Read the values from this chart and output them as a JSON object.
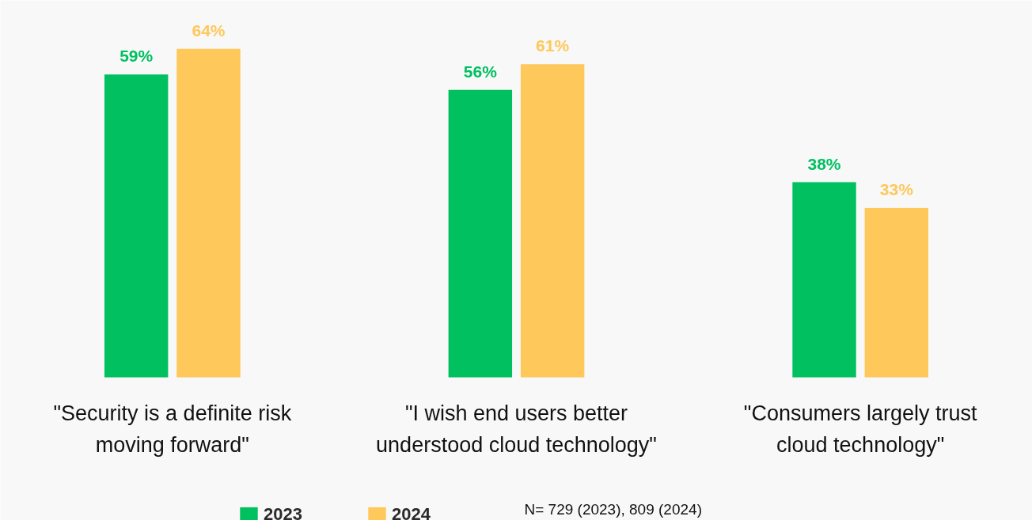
{
  "chart_data": {
    "type": "bar",
    "categories": [
      "\"Security is a definite risk moving forward\"",
      "\"I wish end users better understood cloud technology\"",
      "\"Consumers largely trust cloud technology\""
    ],
    "series": [
      {
        "name": "2023",
        "color": "#00c060",
        "values": [
          59,
          56,
          38
        ],
        "value_labels": [
          "59%",
          "56%",
          "38%"
        ]
      },
      {
        "name": "2024",
        "color": "#fec85a",
        "values": [
          64,
          61,
          33
        ],
        "value_labels": [
          "64%",
          "61%",
          "33%"
        ]
      }
    ],
    "grid": false,
    "legend": "bottom",
    "annotations": [
      "N= 729 (2023), 809 (2024)"
    ]
  }
}
